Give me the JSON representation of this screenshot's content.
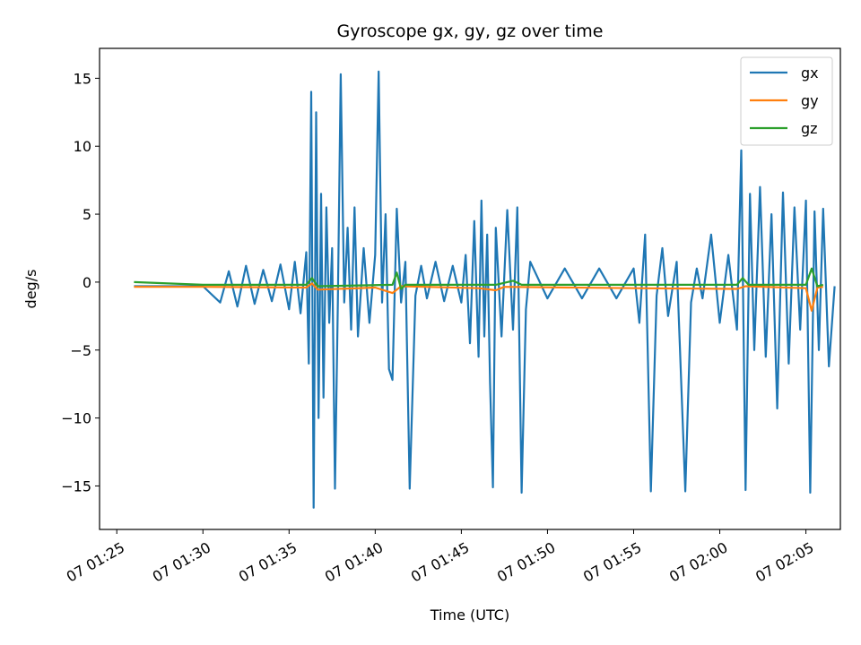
{
  "chart_data": {
    "type": "line",
    "title": "Gyroscope gx, gy, gz over time",
    "xlabel": "Time (UTC)",
    "ylabel": "deg/s",
    "x_start": "07 01:26",
    "x_end": "07 02:06",
    "xlim": [
      "07 01:24",
      "07 02:07"
    ],
    "ylim": [
      -18.2,
      17.2
    ],
    "xticks": [
      "07 01:25",
      "07 01:30",
      "07 01:35",
      "07 01:40",
      "07 01:45",
      "07 01:50",
      "07 01:55",
      "07 02:00",
      "07 02:05"
    ],
    "yticks": [
      -15,
      -10,
      -5,
      0,
      5,
      10,
      15
    ],
    "ytick_labels": [
      "−15",
      "−10",
      "−5",
      "0",
      "5",
      "10",
      "15"
    ],
    "legend_position": "top-right",
    "grid": false,
    "series": [
      {
        "name": "gx",
        "color": "#1f77b4",
        "width": 2.2,
        "points": [
          [
            "07 01:26",
            -0.3
          ],
          [
            "07 01:30",
            -0.3
          ],
          [
            "07 01:31",
            -1.5
          ],
          [
            "07 01:31",
            0.8
          ],
          [
            "07 01:32",
            -1.8
          ],
          [
            "07 01:32",
            1.2
          ],
          [
            "07 01:33",
            -1.6
          ],
          [
            "07 01:33",
            0.9
          ],
          [
            "07 01:34",
            -1.4
          ],
          [
            "07 01:34",
            1.3
          ],
          [
            "07 01:35",
            -2.0
          ],
          [
            "07 01:35",
            1.5
          ],
          [
            "07 01:35",
            -2.3
          ],
          [
            "07 01:36",
            2.2
          ],
          [
            "07 01:36",
            -6.0
          ],
          [
            "07 01:36",
            14.0
          ],
          [
            "07 01:36",
            -16.6
          ],
          [
            "07 01:36",
            12.5
          ],
          [
            "07 01:36",
            -10.0
          ],
          [
            "07 01:36",
            6.5
          ],
          [
            "07 01:37",
            -8.5
          ],
          [
            "07 01:37",
            5.5
          ],
          [
            "07 01:37",
            -3.0
          ],
          [
            "07 01:37",
            2.5
          ],
          [
            "07 01:37",
            -15.2
          ],
          [
            "07 01:37",
            -1.5
          ],
          [
            "07 01:38",
            15.3
          ],
          [
            "07 01:38",
            -1.5
          ],
          [
            "07 01:38",
            4.0
          ],
          [
            "07 01:38",
            -3.5
          ],
          [
            "07 01:38",
            5.5
          ],
          [
            "07 01:39",
            -4.0
          ],
          [
            "07 01:39",
            2.5
          ],
          [
            "07 01:39",
            -3.0
          ],
          [
            "07 01:40",
            2.0
          ],
          [
            "07 01:40",
            15.5
          ],
          [
            "07 01:40",
            -1.5
          ],
          [
            "07 01:40",
            5.0
          ],
          [
            "07 01:40",
            -6.4
          ],
          [
            "07 01:41",
            -7.2
          ],
          [
            "07 01:41",
            5.4
          ],
          [
            "07 01:41",
            -1.5
          ],
          [
            "07 01:41",
            1.5
          ],
          [
            "07 01:42",
            -15.2
          ],
          [
            "07 01:42",
            -1.0
          ],
          [
            "07 01:42",
            1.2
          ],
          [
            "07 01:43",
            -1.2
          ],
          [
            "07 01:43",
            1.5
          ],
          [
            "07 01:44",
            -1.4
          ],
          [
            "07 01:44",
            1.2
          ],
          [
            "07 01:45",
            -1.5
          ],
          [
            "07 01:45",
            2.0
          ],
          [
            "07 01:45",
            -4.5
          ],
          [
            "07 01:45",
            4.5
          ],
          [
            "07 01:46",
            -5.5
          ],
          [
            "07 01:46",
            6.0
          ],
          [
            "07 01:46",
            -4.0
          ],
          [
            "07 01:46",
            3.5
          ],
          [
            "07 01:46",
            -7.4
          ],
          [
            "07 01:46",
            -15.1
          ],
          [
            "07 01:47",
            4.0
          ],
          [
            "07 01:47",
            -4.0
          ],
          [
            "07 01:47",
            5.3
          ],
          [
            "07 01:48",
            -3.5
          ],
          [
            "07 01:48",
            5.5
          ],
          [
            "07 01:48",
            -15.5
          ],
          [
            "07 01:48",
            -2.0
          ],
          [
            "07 01:49",
            1.5
          ],
          [
            "07 01:50",
            -1.2
          ],
          [
            "07 01:51",
            1.0
          ],
          [
            "07 01:52",
            -1.2
          ],
          [
            "07 01:53",
            1.0
          ],
          [
            "07 01:54",
            -1.2
          ],
          [
            "07 01:55",
            1.0
          ],
          [
            "07 01:55",
            -3.0
          ],
          [
            "07 01:55",
            3.5
          ],
          [
            "07 01:56",
            -15.4
          ],
          [
            "07 01:56",
            -1.0
          ],
          [
            "07 01:56",
            2.5
          ],
          [
            "07 01:57",
            -2.5
          ],
          [
            "07 01:57",
            1.5
          ],
          [
            "07 01:58",
            -15.4
          ],
          [
            "07 01:58",
            -1.5
          ],
          [
            "07 01:58",
            1.0
          ],
          [
            "07 01:59",
            -1.2
          ],
          [
            "07 01:59",
            3.5
          ],
          [
            "07 02:00",
            -3.0
          ],
          [
            "07 02:00",
            2.0
          ],
          [
            "07 02:01",
            -3.5
          ],
          [
            "07 02:01",
            9.7
          ],
          [
            "07 02:01",
            -15.3
          ],
          [
            "07 02:01",
            6.5
          ],
          [
            "07 02:02",
            -5.0
          ],
          [
            "07 02:02",
            7.0
          ],
          [
            "07 02:02",
            -5.5
          ],
          [
            "07 02:03",
            5.0
          ],
          [
            "07 02:03",
            -9.3
          ],
          [
            "07 02:03",
            6.6
          ],
          [
            "07 02:04",
            -6.0
          ],
          [
            "07 02:04",
            5.5
          ],
          [
            "07 02:04",
            -3.5
          ],
          [
            "07 02:05",
            6.0
          ],
          [
            "07 02:05",
            -15.5
          ],
          [
            "07 02:05",
            5.2
          ],
          [
            "07 02:05",
            -5.0
          ],
          [
            "07 02:06",
            5.4
          ],
          [
            "07 02:06",
            -6.2
          ],
          [
            "07 02:06",
            -0.3
          ]
        ]
      },
      {
        "name": "gy",
        "color": "#ff7f0e",
        "width": 2.2,
        "points": [
          [
            "07 01:26",
            -0.35
          ],
          [
            "07 01:30",
            -0.35
          ],
          [
            "07 01:36",
            -0.4
          ],
          [
            "07 01:36",
            -0.1
          ],
          [
            "07 01:36",
            -0.55
          ],
          [
            "07 01:40",
            -0.4
          ],
          [
            "07 01:41",
            -0.8
          ],
          [
            "07 01:41",
            -0.3
          ],
          [
            "07 01:46",
            -0.45
          ],
          [
            "07 01:47",
            -0.6
          ],
          [
            "07 01:47",
            -0.35
          ],
          [
            "07 01:55",
            -0.45
          ],
          [
            "07 02:01",
            -0.5
          ],
          [
            "07 02:01",
            -0.3
          ],
          [
            "07 02:05",
            -0.45
          ],
          [
            "07 02:05",
            -2.1
          ],
          [
            "07 02:05",
            -0.4
          ],
          [
            "07 02:06",
            -0.35
          ]
        ]
      },
      {
        "name": "gz",
        "color": "#2ca02c",
        "width": 2.2,
        "points": [
          [
            "07 01:26",
            0.0
          ],
          [
            "07 01:30",
            -0.2
          ],
          [
            "07 01:36",
            -0.2
          ],
          [
            "07 01:36",
            0.3
          ],
          [
            "07 01:36",
            -0.3
          ],
          [
            "07 01:41",
            -0.2
          ],
          [
            "07 01:41",
            0.7
          ],
          [
            "07 01:41",
            -0.5
          ],
          [
            "07 01:41",
            -0.2
          ],
          [
            "07 01:47",
            -0.2
          ],
          [
            "07 01:48",
            0.1
          ],
          [
            "07 01:48",
            -0.2
          ],
          [
            "07 02:01",
            -0.2
          ],
          [
            "07 02:01",
            0.3
          ],
          [
            "07 02:01",
            -0.2
          ],
          [
            "07 02:05",
            -0.2
          ],
          [
            "07 02:05",
            1.0
          ],
          [
            "07 02:05",
            -0.3
          ],
          [
            "07 02:06",
            -0.2
          ]
        ]
      }
    ]
  }
}
